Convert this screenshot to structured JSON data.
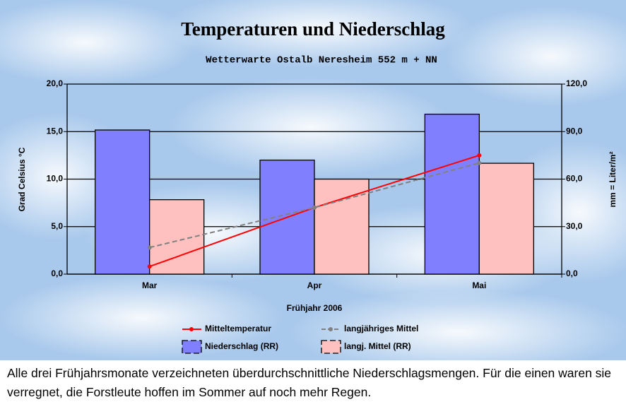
{
  "chart_data": {
    "type": "bar",
    "title": "Temperaturen und Niederschlag",
    "subtitle": "Wetterwarte Ostalb Neresheim 552 m + NN",
    "x_label": "Frühjahr 2006",
    "y_label": "Grad Celsius °C",
    "y2_label": "mm = Liter/m²",
    "categories": [
      "Mar",
      "Apr",
      "Mai"
    ],
    "series": [
      {
        "name": "Mitteltemperatur",
        "kind": "line",
        "color": "#ff0000",
        "values": [
          0.8,
          7.0,
          12.5
        ]
      },
      {
        "name": "langjähriges Mittel",
        "kind": "line",
        "color": "#808080",
        "dashed": true,
        "values": [
          2.8,
          7.0,
          11.7
        ]
      },
      {
        "name": "Niederschlag (RR)",
        "kind": "bar",
        "axis": "y2",
        "color": "#8080ff",
        "values": [
          91,
          72,
          101
        ]
      },
      {
        "name": "langj. Mittel (RR)",
        "kind": "bar",
        "axis": "y2",
        "color": "#ffc0c0",
        "values": [
          47,
          60,
          70
        ]
      }
    ],
    "ylim": [
      0,
      20
    ],
    "yticks": [
      {
        "value": 0,
        "label": "0,0"
      },
      {
        "value": 5,
        "label": "5,0"
      },
      {
        "value": 10,
        "label": "10,0"
      },
      {
        "value": 15,
        "label": "15,0"
      },
      {
        "value": 20,
        "label": "20,0"
      }
    ],
    "y2lim": [
      0,
      120
    ],
    "y2ticks": [
      {
        "value": 0,
        "label": "0,0"
      },
      {
        "value": 30,
        "label": "30,0"
      },
      {
        "value": 60,
        "label": "60,0"
      },
      {
        "value": 90,
        "label": "90,0"
      },
      {
        "value": 120,
        "label": "120,0"
      }
    ],
    "grid": true
  },
  "caption": "Alle drei Frühjahrsmonate verzeichneten überdurchschnittliche Niederschlagsmengen. Für die einen waren sie verregnet, die Forstleute hoffen im Sommer auf noch mehr Regen."
}
